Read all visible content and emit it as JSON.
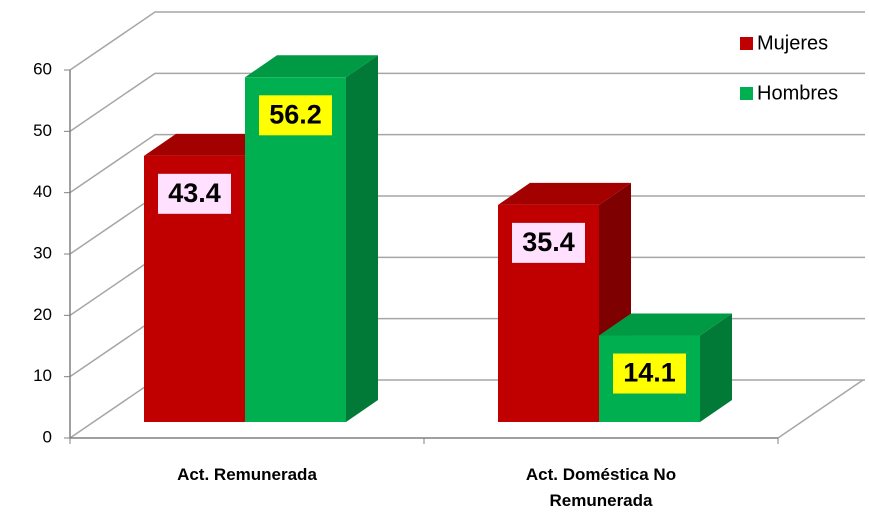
{
  "chart_data": {
    "type": "bar3d",
    "categories": [
      "Act. Remunerada",
      "Act. Doméstica No Remunerada"
    ],
    "series": [
      {
        "name": "Mujeres",
        "color": "#c00000",
        "side": "#7f0000",
        "top": "#a30000",
        "label_bg": "#ffe1ff",
        "values": [
          43.4,
          35.4
        ]
      },
      {
        "name": "Hombres",
        "color": "#00b050",
        "side": "#007a36",
        "top": "#009a44",
        "label_bg": "#ffff00",
        "values": [
          56.2,
          14.1
        ]
      }
    ],
    "ylim": [
      0,
      60
    ],
    "yticks": [
      0,
      10,
      20,
      30,
      40,
      50,
      60
    ],
    "grid": true,
    "legend": "top-right"
  }
}
